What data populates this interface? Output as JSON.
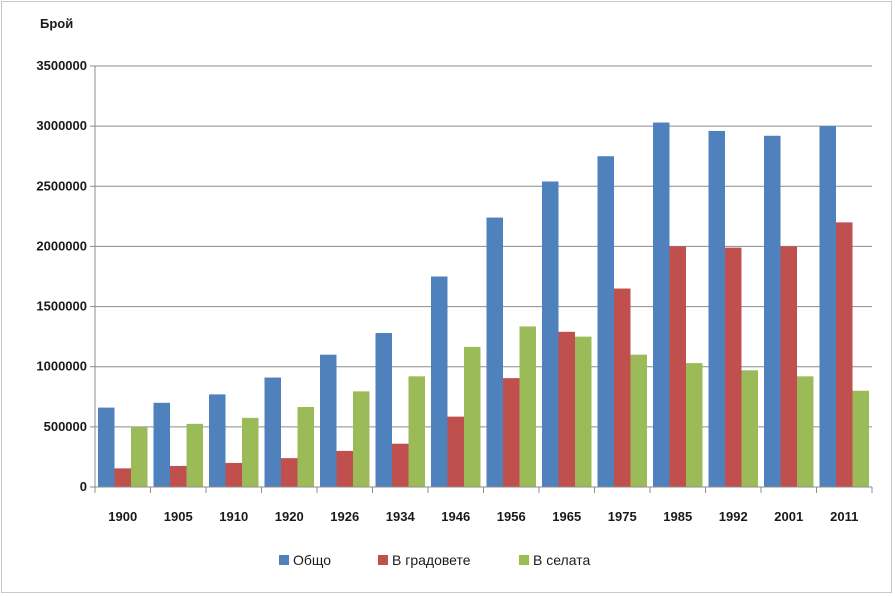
{
  "chart_data": {
    "type": "bar",
    "ylabel": "Брой",
    "xlabel": "",
    "title": "",
    "ylim": [
      0,
      3500000
    ],
    "ytick_step": 500000,
    "ytick_labels": [
      "0",
      "500000",
      "1000000",
      "1500000",
      "2000000",
      "2500000",
      "3000000",
      "3500000"
    ],
    "grid": true,
    "legend_position": "bottom",
    "categories": [
      "1900",
      "1905",
      "1910",
      "1920",
      "1926",
      "1934",
      "1946",
      "1956",
      "1965",
      "1975",
      "1985",
      "1992",
      "2001",
      "2011"
    ],
    "series": [
      {
        "name": "Общо",
        "color": "#4f81bd",
        "values": [
          660000,
          700000,
          770000,
          910000,
          1100000,
          1280000,
          1750000,
          2240000,
          2540000,
          2750000,
          3030000,
          2960000,
          2920000,
          3000000
        ]
      },
      {
        "name": "В градовете",
        "color": "#c0504d",
        "values": [
          155000,
          175000,
          200000,
          240000,
          300000,
          360000,
          585000,
          905000,
          1290000,
          1650000,
          2000000,
          1990000,
          2000000,
          2200000
        ]
      },
      {
        "name": "В селата",
        "color": "#9bbb59",
        "values": [
          500000,
          525000,
          575000,
          665000,
          795000,
          920000,
          1165000,
          1335000,
          1250000,
          1100000,
          1030000,
          970000,
          920000,
          800000
        ]
      }
    ]
  }
}
